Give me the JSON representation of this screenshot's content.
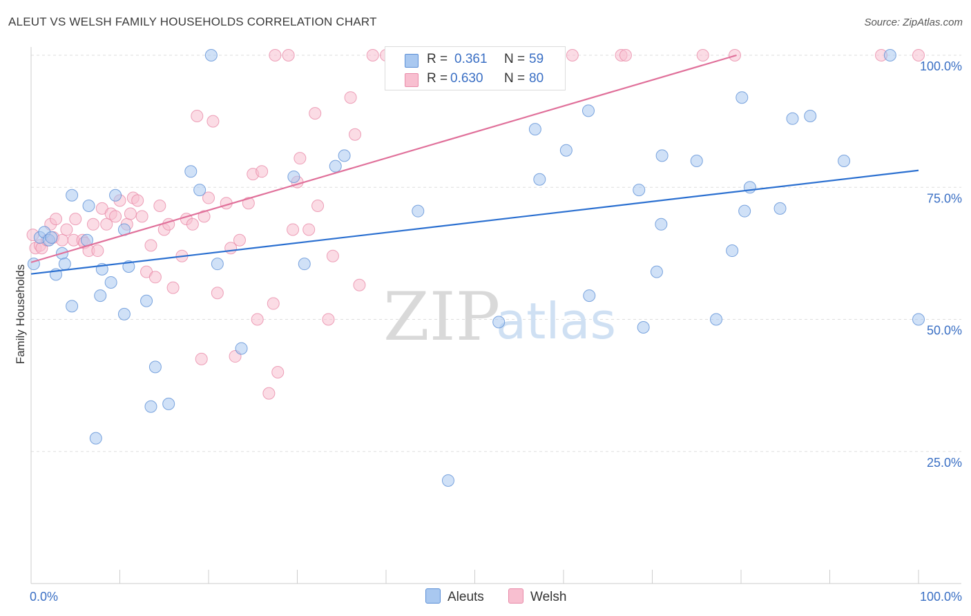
{
  "title": "ALEUT VS WELSH FAMILY HOUSEHOLDS CORRELATION CHART",
  "source": "Source: ZipAtlas.com",
  "watermark": {
    "zip": "ZIP",
    "atlas": "atlas"
  },
  "legend": {
    "r_label": "R =",
    "n_label": "N =",
    "aleuts": {
      "r": "0.361",
      "n": "59"
    },
    "welsh": {
      "r": "0.630",
      "n": "80"
    }
  },
  "bottom_legend": {
    "aleuts": "Aleuts",
    "welsh": "Welsh"
  },
  "colors": {
    "aleuts_fill": "#a9c8f0",
    "aleuts_stroke": "#5b8fd6",
    "aleuts_line": "#2a6fd0",
    "welsh_fill": "#f8bfd0",
    "welsh_stroke": "#e88aa8",
    "welsh_line": "#e0709a",
    "tick_label": "#3a6fc4",
    "grid": "#dddddd"
  },
  "chart_data": {
    "type": "scatter",
    "title": "ALEUT VS WELSH FAMILY HOUSEHOLDS CORRELATION CHART",
    "xlabel": "",
    "ylabel": "Family Households",
    "xlim": [
      0,
      100
    ],
    "ylim": [
      0,
      100
    ],
    "x_tick_labels": [
      {
        "value": 0,
        "label": "0.0%"
      },
      {
        "value": 100,
        "label": "100.0%"
      }
    ],
    "y_tick_labels": [
      {
        "value": 25,
        "label": "25.0%"
      },
      {
        "value": 50,
        "label": "50.0%"
      },
      {
        "value": 75,
        "label": "75.0%"
      },
      {
        "value": 100,
        "label": "100.0%"
      }
    ],
    "series": [
      {
        "name": "Aleuts",
        "r": 0.361,
        "n": 59,
        "trendline": {
          "x": [
            0,
            100
          ],
          "y": [
            58.6,
            78.2
          ]
        },
        "points": [
          [
            0.3,
            60.5
          ],
          [
            1.0,
            65.5
          ],
          [
            1.5,
            66.5
          ],
          [
            2.0,
            65.0
          ],
          [
            2.3,
            65.5
          ],
          [
            2.8,
            58.5
          ],
          [
            3.5,
            62.5
          ],
          [
            3.8,
            60.5
          ],
          [
            4.6,
            52.5
          ],
          [
            4.6,
            73.5
          ],
          [
            6.3,
            65.0
          ],
          [
            6.5,
            71.5
          ],
          [
            7.3,
            27.5
          ],
          [
            7.8,
            54.5
          ],
          [
            8.0,
            59.5
          ],
          [
            9.0,
            57.0
          ],
          [
            9.5,
            73.5
          ],
          [
            10.5,
            67.0
          ],
          [
            10.5,
            51.0
          ],
          [
            11.0,
            60.0
          ],
          [
            13.0,
            53.5
          ],
          [
            13.5,
            33.5
          ],
          [
            14.0,
            41.0
          ],
          [
            15.5,
            34.0
          ],
          [
            18.0,
            78.0
          ],
          [
            19.0,
            74.5
          ],
          [
            20.3,
            100.0
          ],
          [
            21.0,
            60.5
          ],
          [
            23.7,
            44.5
          ],
          [
            29.6,
            77.0
          ],
          [
            30.8,
            60.5
          ],
          [
            34.3,
            79.0
          ],
          [
            35.3,
            81.0
          ],
          [
            43.6,
            70.5
          ],
          [
            47.0,
            19.5
          ],
          [
            52.7,
            49.5
          ],
          [
            56.2,
            100.0
          ],
          [
            56.8,
            86.0
          ],
          [
            57.3,
            76.5
          ],
          [
            60.3,
            82.0
          ],
          [
            62.8,
            89.5
          ],
          [
            62.9,
            54.5
          ],
          [
            68.5,
            74.5
          ],
          [
            69.0,
            48.5
          ],
          [
            70.5,
            59.0
          ],
          [
            71.0,
            68.0
          ],
          [
            71.1,
            81.0
          ],
          [
            75.0,
            80.0
          ],
          [
            77.2,
            50.0
          ],
          [
            79.0,
            63.0
          ],
          [
            80.1,
            92.0
          ],
          [
            80.4,
            70.5
          ],
          [
            81.0,
            75.0
          ],
          [
            84.4,
            71.0
          ],
          [
            85.8,
            88.0
          ],
          [
            87.8,
            88.5
          ],
          [
            91.6,
            80.0
          ],
          [
            96.8,
            100.0
          ],
          [
            100.0,
            50.0
          ]
        ]
      },
      {
        "name": "Welsh",
        "r": 0.63,
        "n": 80,
        "trendline": {
          "x": [
            0,
            79.5
          ],
          "y": [
            60.8,
            100.0
          ]
        },
        "points": [
          [
            0.2,
            66.0
          ],
          [
            0.5,
            63.5
          ],
          [
            1.0,
            64.0
          ],
          [
            1.2,
            63.5
          ],
          [
            1.8,
            65.0
          ],
          [
            2.2,
            68.0
          ],
          [
            2.5,
            65.5
          ],
          [
            2.8,
            69.0
          ],
          [
            3.5,
            65.0
          ],
          [
            4.0,
            67.0
          ],
          [
            4.8,
            65.0
          ],
          [
            5.0,
            69.0
          ],
          [
            5.8,
            65.0
          ],
          [
            6.0,
            64.5
          ],
          [
            6.5,
            63.0
          ],
          [
            7.0,
            68.0
          ],
          [
            7.5,
            63.0
          ],
          [
            8.0,
            71.0
          ],
          [
            8.5,
            68.0
          ],
          [
            9.0,
            70.0
          ],
          [
            9.5,
            69.5
          ],
          [
            10.0,
            72.5
          ],
          [
            10.8,
            68.0
          ],
          [
            11.2,
            70.0
          ],
          [
            11.5,
            73.0
          ],
          [
            12.0,
            72.5
          ],
          [
            12.5,
            69.5
          ],
          [
            13.0,
            59.0
          ],
          [
            13.5,
            64.0
          ],
          [
            14.0,
            58.0
          ],
          [
            14.5,
            71.5
          ],
          [
            15.0,
            67.0
          ],
          [
            15.5,
            68.0
          ],
          [
            16.0,
            56.0
          ],
          [
            17.0,
            62.0
          ],
          [
            17.5,
            69.0
          ],
          [
            18.2,
            68.0
          ],
          [
            18.7,
            88.5
          ],
          [
            19.2,
            42.5
          ],
          [
            19.5,
            69.5
          ],
          [
            20.0,
            73.0
          ],
          [
            20.5,
            87.5
          ],
          [
            21.0,
            55.0
          ],
          [
            22.0,
            72.0
          ],
          [
            22.5,
            63.5
          ],
          [
            23.0,
            43.0
          ],
          [
            23.5,
            65.0
          ],
          [
            24.5,
            72.0
          ],
          [
            25.0,
            77.5
          ],
          [
            25.5,
            50.0
          ],
          [
            26.0,
            78.0
          ],
          [
            26.8,
            36.0
          ],
          [
            27.3,
            53.0
          ],
          [
            27.8,
            40.0
          ],
          [
            27.5,
            100.0
          ],
          [
            29.0,
            100.0
          ],
          [
            29.5,
            67.0
          ],
          [
            30.0,
            76.0
          ],
          [
            30.3,
            80.5
          ],
          [
            31.3,
            67.0
          ],
          [
            32.0,
            89.0
          ],
          [
            32.3,
            71.5
          ],
          [
            33.5,
            50.0
          ],
          [
            34.0,
            62.0
          ],
          [
            36.0,
            92.0
          ],
          [
            36.5,
            85.0
          ],
          [
            37.0,
            56.5
          ],
          [
            38.5,
            100.0
          ],
          [
            40.0,
            100.0
          ],
          [
            47.0,
            100.0
          ],
          [
            50.8,
            100.0
          ],
          [
            56.0,
            100.0
          ],
          [
            61.0,
            100.0
          ],
          [
            66.5,
            100.0
          ],
          [
            67.0,
            100.0
          ],
          [
            75.7,
            100.0
          ],
          [
            79.3,
            100.0
          ],
          [
            95.8,
            100.0
          ],
          [
            100.0,
            100.0
          ],
          [
            45.0,
            100.0
          ]
        ]
      }
    ]
  }
}
